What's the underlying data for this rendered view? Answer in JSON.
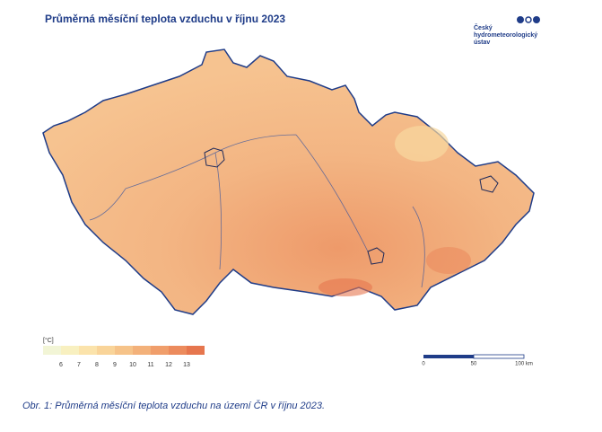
{
  "header": {
    "title": "Průměrná měsíční teplota vzduchu v říjnu 2023",
    "logo": [
      "Český",
      "hydrometeorologický",
      "ústav"
    ]
  },
  "legend": {
    "unit": "[°C]",
    "colors": [
      "#f2f5d6",
      "#f8f0c0",
      "#fbe3ab",
      "#f9d499",
      "#f6c389",
      "#f3b17a",
      "#f09e6b",
      "#ec8b5d",
      "#e6764e"
    ],
    "ticks": [
      6,
      7,
      8,
      9,
      10,
      11,
      12,
      13
    ]
  },
  "scale_bar": {
    "labels": [
      "0",
      "50",
      "100 km"
    ]
  },
  "caption": "Obr. 1: Průměrná měsíční teplota vzduchu na území ČR v říjnu 2023."
}
